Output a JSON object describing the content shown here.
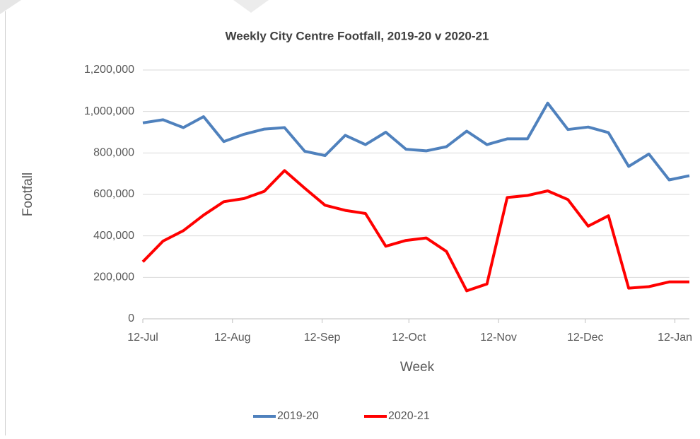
{
  "chart_data": {
    "type": "line",
    "title": "Weekly City Centre Footfall, 2019-20 v 2020-21",
    "x_label": "Week",
    "y_label": "Footfall",
    "x": [
      "12-Jul",
      "19-Jul",
      "26-Jul",
      "2-Aug",
      "9-Aug",
      "16-Aug",
      "23-Aug",
      "30-Aug",
      "6-Sep",
      "13-Sep",
      "20-Sep",
      "27-Sep",
      "4-Oct",
      "11-Oct",
      "18-Oct",
      "25-Oct",
      "1-Nov",
      "8-Nov",
      "15-Nov",
      "22-Nov",
      "29-Nov",
      "6-Dec",
      "13-Dec",
      "20-Dec",
      "27-Dec",
      "3-Jan",
      "10-Jan",
      "17-Jan"
    ],
    "series": [
      {
        "name": "2019-20",
        "color": "#4f81bd",
        "values": [
          945000,
          960000,
          922000,
          975000,
          855000,
          890000,
          915000,
          922000,
          808000,
          787000,
          885000,
          840000,
          900000,
          818000,
          810000,
          830000,
          905000,
          840000,
          868000,
          868000,
          1040000,
          913000,
          925000,
          898000,
          735000,
          795000,
          670000,
          690000
        ]
      },
      {
        "name": "2020-21",
        "color": "#ff0000",
        "values": [
          275000,
          375000,
          425000,
          500000,
          565000,
          580000,
          615000,
          715000,
          630000,
          548000,
          523000,
          508000,
          350000,
          378000,
          390000,
          325000,
          135000,
          168000,
          585000,
          595000,
          617000,
          575000,
          447000,
          497000,
          148000,
          155000,
          178000,
          178000
        ]
      }
    ],
    "xlim": [
      "12-Jul",
      "17-Jan"
    ],
    "xticks": [
      "12-Jul",
      "12-Aug",
      "12-Sep",
      "12-Oct",
      "12-Nov",
      "12-Dec",
      "12-Jan"
    ],
    "ylim": [
      0,
      1200000
    ],
    "yticks": [
      0,
      {
        "value": 200000,
        "label": "200,000"
      },
      {
        "value": 400000,
        "label": "400,000"
      },
      {
        "value": 600000,
        "label": "600,000"
      },
      {
        "value": 800000,
        "label": "800,000"
      },
      {
        "value": 1000000,
        "label": "1,000,000"
      },
      {
        "value": 1200000,
        "label": "1,200,000"
      }
    ],
    "grid": true,
    "legend": "bottom"
  }
}
